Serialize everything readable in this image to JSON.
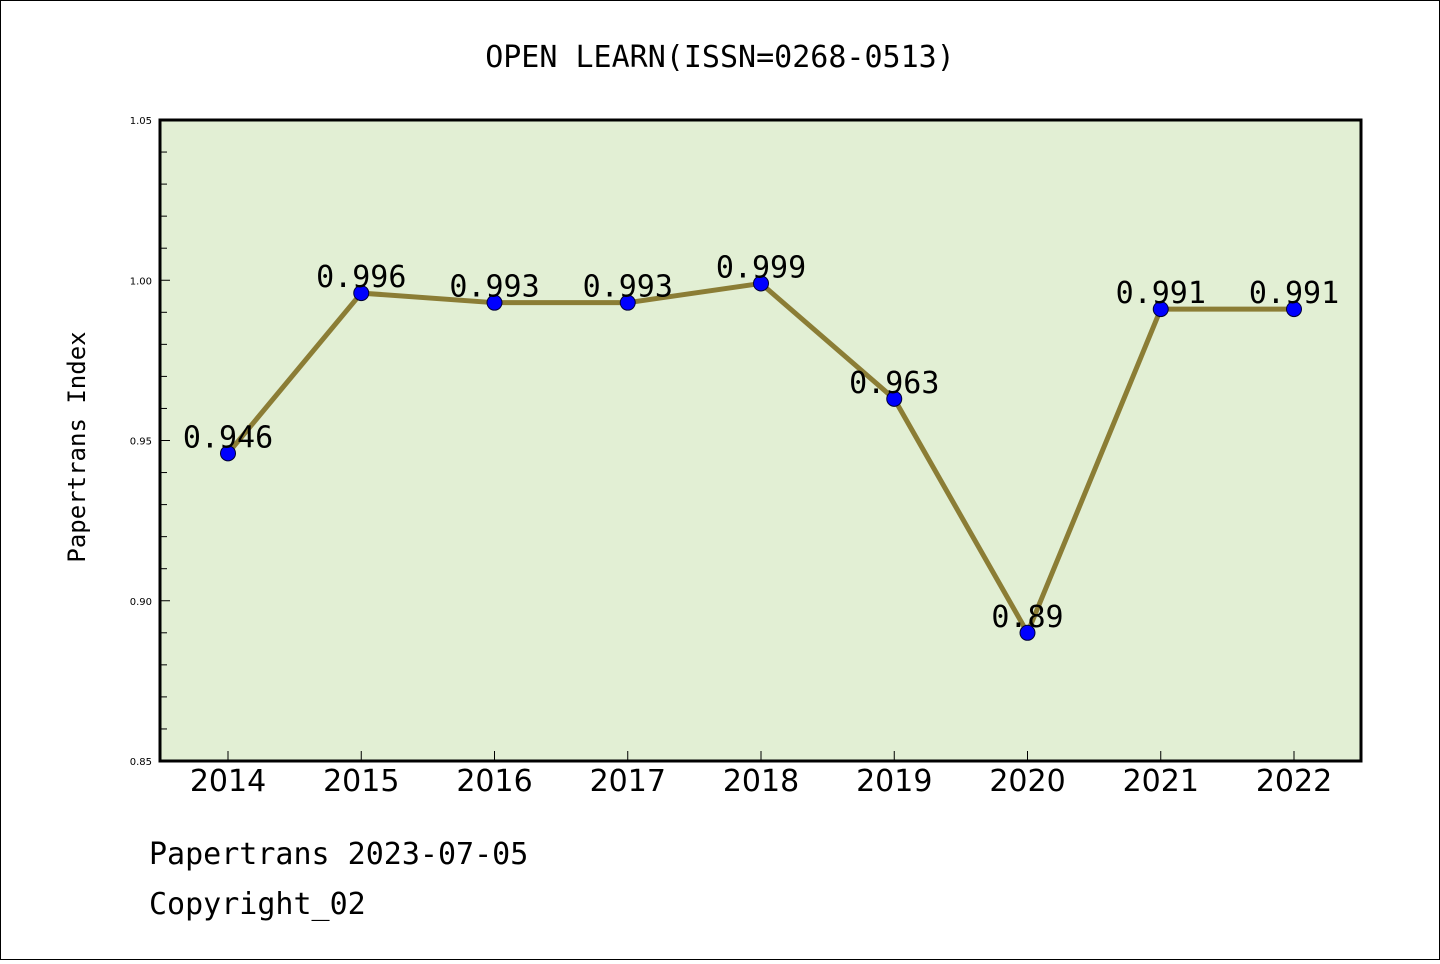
{
  "chart_data": {
    "type": "line",
    "title": "OPEN LEARN(ISSN=0268-0513)",
    "xlabel": "",
    "ylabel": "Papertrans Index",
    "categories": [
      "2014",
      "2015",
      "2016",
      "2017",
      "2018",
      "2019",
      "2020",
      "2021",
      "2022"
    ],
    "series": [
      {
        "values": [
          0.946,
          0.996,
          0.993,
          0.993,
          0.999,
          0.963,
          0.89,
          0.991,
          0.991
        ],
        "labels": [
          "0.946",
          "0.996",
          "0.993",
          "0.993",
          "0.999",
          "0.963",
          "0.89",
          "0.991",
          "0.991"
        ]
      }
    ],
    "ylim": [
      0.85,
      1.05
    ],
    "yticks": [
      "0.85",
      "0.90",
      "0.95",
      "1.00",
      "1.05"
    ],
    "grid": false,
    "colors": {
      "plot_background": "#e2efd4",
      "line": "#8b7d35",
      "marker": "#0000ff"
    }
  },
  "footer": {
    "line1": "Papertrans 2023-07-05",
    "line2": "Copyright_02"
  }
}
